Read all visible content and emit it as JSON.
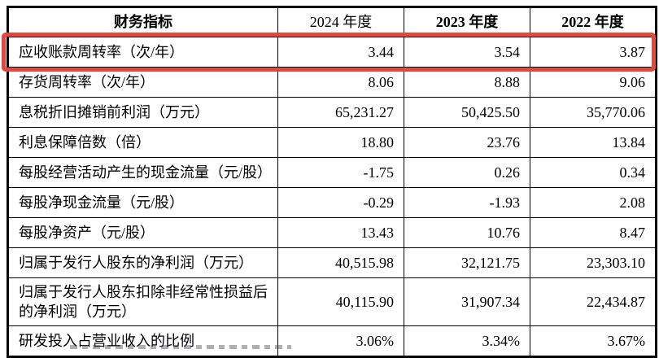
{
  "page": {
    "background": "#ffffff",
    "highlight_color": "#e8463c"
  },
  "table": {
    "header": {
      "indicator": "财务指标",
      "years": [
        "2024 年度",
        "2023 年度",
        "2022 年度"
      ],
      "years_bold": [
        false,
        true,
        true
      ]
    },
    "rows": [
      {
        "label": "应收账款周转率（次/年）",
        "values": [
          "3.44",
          "3.54",
          "3.87"
        ],
        "highlighted": true
      },
      {
        "label": "存货周转率（次/年）",
        "values": [
          "8.06",
          "8.88",
          "9.06"
        ],
        "highlighted": false
      },
      {
        "label": "息税折旧摊销前利润（万元）",
        "values": [
          "65,231.27",
          "50,425.50",
          "35,770.06"
        ],
        "highlighted": false
      },
      {
        "label": "利息保障倍数（倍）",
        "values": [
          "18.80",
          "23.76",
          "13.84"
        ],
        "highlighted": false
      },
      {
        "label": "每股经营活动产生的现金流量（元/股）",
        "values": [
          "-1.75",
          "0.26",
          "0.34"
        ],
        "highlighted": false
      },
      {
        "label": "每股净现金流量（元/股）",
        "values": [
          "-0.29",
          "-1.93",
          "2.08"
        ],
        "highlighted": false
      },
      {
        "label": "每股净资产（元/股）",
        "values": [
          "13.43",
          "10.76",
          "8.47"
        ],
        "highlighted": false
      },
      {
        "label": "归属于发行人股东的净利润（万元）",
        "values": [
          "40,515.98",
          "32,121.75",
          "23,303.10"
        ],
        "highlighted": false
      },
      {
        "label": "归属于发行人股东扣除非经常性损益后的净利润（万元）",
        "values": [
          "40,115.90",
          "31,907.34",
          "22,434.87"
        ],
        "highlighted": false
      },
      {
        "label": "研发投入占营业收入的比例",
        "values": [
          "3.06%",
          "3.34%",
          "3.67%"
        ],
        "highlighted": false
      }
    ]
  }
}
